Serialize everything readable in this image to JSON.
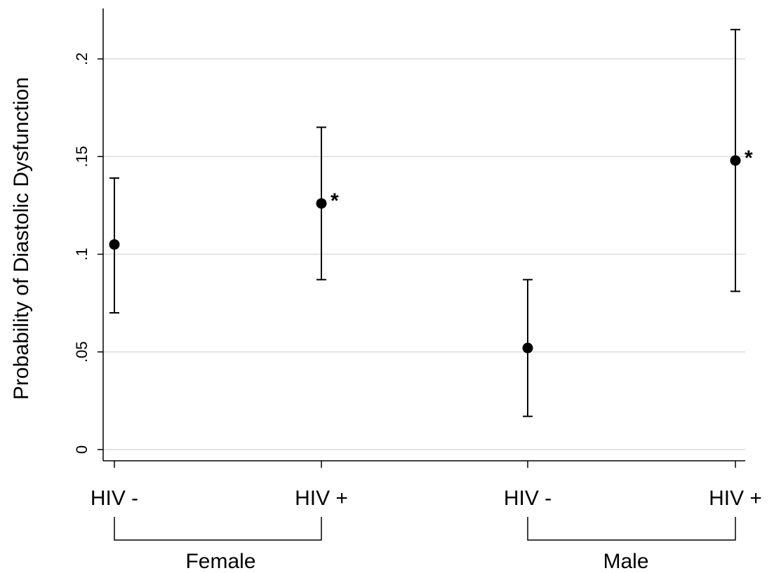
{
  "chart_data": {
    "type": "scatter",
    "title": "",
    "ylabel": "Probability of Diastolic Dysfunction",
    "ylim": [
      0,
      0.22
    ],
    "yticks": [
      {
        "value": 0,
        "label": "0"
      },
      {
        "value": 0.05,
        "label": ".05"
      },
      {
        "value": 0.1,
        "label": ".1"
      },
      {
        "value": 0.15,
        "label": ".15"
      },
      {
        "value": 0.2,
        "label": ".2"
      }
    ],
    "grid": true,
    "points": [
      {
        "category": "HIV -",
        "group": "Female",
        "estimate": 0.105,
        "lower": 0.07,
        "upper": 0.139,
        "marker": ""
      },
      {
        "category": "HIV +",
        "group": "Female",
        "estimate": 0.126,
        "lower": 0.087,
        "upper": 0.165,
        "marker": "*"
      },
      {
        "category": "HIV -",
        "group": "Male",
        "estimate": 0.052,
        "lower": 0.017,
        "upper": 0.087,
        "marker": ""
      },
      {
        "category": "HIV +",
        "group": "Male",
        "estimate": 0.148,
        "lower": 0.081,
        "upper": 0.215,
        "marker": "*"
      }
    ],
    "groups": [
      "Female",
      "Male"
    ]
  }
}
